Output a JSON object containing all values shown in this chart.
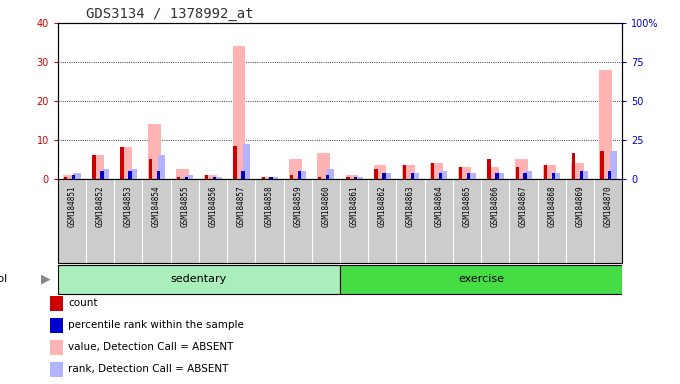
{
  "title": "GDS3134 / 1378992_at",
  "samples": [
    "GSM184851",
    "GSM184852",
    "GSM184853",
    "GSM184854",
    "GSM184855",
    "GSM184856",
    "GSM184857",
    "GSM184858",
    "GSM184859",
    "GSM184860",
    "GSM184861",
    "GSM184862",
    "GSM184863",
    "GSM184864",
    "GSM184865",
    "GSM184866",
    "GSM184867",
    "GSM184868",
    "GSM184869",
    "GSM184870"
  ],
  "count_values": [
    0.5,
    6.0,
    8.0,
    5.0,
    0.5,
    1.0,
    8.5,
    0.5,
    1.0,
    0.5,
    0.5,
    2.5,
    3.5,
    4.0,
    3.0,
    5.0,
    3.0,
    3.5,
    6.5,
    7.0
  ],
  "percentile_values": [
    1.0,
    2.0,
    2.0,
    2.0,
    0.5,
    0.5,
    2.0,
    0.5,
    2.0,
    1.0,
    0.5,
    1.5,
    1.5,
    1.5,
    1.5,
    1.5,
    1.5,
    1.5,
    2.0,
    2.0
  ],
  "value_absent": [
    1.0,
    6.0,
    8.0,
    14.0,
    2.5,
    1.0,
    34.0,
    0.5,
    5.0,
    6.5,
    1.0,
    3.5,
    3.5,
    4.0,
    3.0,
    3.0,
    5.0,
    3.5,
    4.0,
    28.0
  ],
  "rank_absent": [
    1.5,
    2.5,
    2.5,
    6.0,
    1.0,
    0.5,
    9.0,
    0.5,
    2.0,
    2.5,
    0.5,
    1.5,
    1.5,
    2.0,
    1.5,
    1.5,
    2.0,
    1.5,
    2.0,
    7.0
  ],
  "sedentary_count": 10,
  "exercise_count": 10,
  "ylim_left": [
    0,
    40
  ],
  "ylim_right": [
    0,
    100
  ],
  "yticks_left": [
    0,
    10,
    20,
    30,
    40
  ],
  "yticks_right": [
    0,
    25,
    50,
    75,
    100
  ],
  "color_count": "#cc0000",
  "color_percentile": "#0000cc",
  "color_value_absent": "#ffb3b3",
  "color_rank_absent": "#b3b3ff",
  "color_sedentary_bg": "#aaeebb",
  "color_exercise_bg": "#44dd44",
  "color_xticklabel_bg": "#cccccc",
  "color_plot_bg": "#ffffff",
  "color_title": "#333333",
  "legend_items": [
    {
      "label": "count",
      "color": "#cc0000"
    },
    {
      "label": "percentile rank within the sample",
      "color": "#0000cc"
    },
    {
      "label": "value, Detection Call = ABSENT",
      "color": "#ffb3b3"
    },
    {
      "label": "rank, Detection Call = ABSENT",
      "color": "#b3b3ff"
    }
  ]
}
